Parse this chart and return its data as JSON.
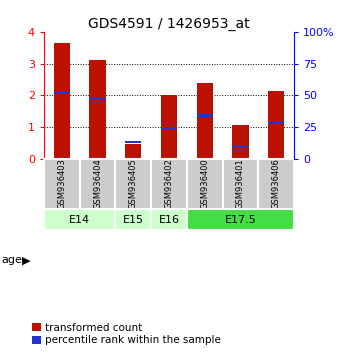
{
  "title": "GDS4591 / 1426953_at",
  "samples": [
    "GSM936403",
    "GSM936404",
    "GSM936405",
    "GSM936402",
    "GSM936400",
    "GSM936401",
    "GSM936406"
  ],
  "transformed_counts": [
    3.65,
    3.12,
    0.45,
    2.0,
    2.4,
    1.05,
    2.12
  ],
  "percentile_ranks": [
    0.52,
    0.47,
    0.13,
    0.24,
    0.34,
    0.09,
    0.28
  ],
  "age_groups": [
    {
      "label": "E14",
      "start": 0,
      "end": 2,
      "color": "#ccffcc"
    },
    {
      "label": "E15",
      "start": 2,
      "end": 3,
      "color": "#ccffcc"
    },
    {
      "label": "E16",
      "start": 3,
      "end": 4,
      "color": "#ccffcc"
    },
    {
      "label": "E17.5",
      "start": 4,
      "end": 7,
      "color": "#44dd44"
    }
  ],
  "ylim_left": [
    0,
    4
  ],
  "ylim_right": [
    0,
    100
  ],
  "yticks_left": [
    0,
    1,
    2,
    3,
    4
  ],
  "yticks_right": [
    0,
    25,
    50,
    75,
    100
  ],
  "bar_color": "#bb1100",
  "percentile_color": "#2233cc",
  "bar_width": 0.45,
  "sample_box_color": "#cccccc",
  "legend_red_label": "transformed count",
  "legend_blue_label": "percentile rank within the sample",
  "age_label": "age"
}
